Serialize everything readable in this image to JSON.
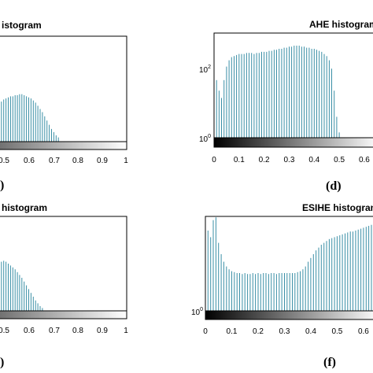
{
  "chart_data": [
    {
      "panel": "top-left",
      "type": "bar",
      "title": "istogram",
      "xticks": [
        "0.5",
        "0.6",
        "0.7",
        "0.8",
        "0.9",
        "1"
      ],
      "xlim": [
        0.43,
        1.0
      ],
      "panel_label": ")",
      "series": [
        {
          "x": [
            0.44,
            0.45,
            0.46,
            0.47,
            0.48,
            0.49,
            0.5,
            0.51,
            0.52,
            0.53,
            0.54,
            0.55,
            0.56,
            0.57,
            0.58,
            0.59,
            0.6,
            0.61,
            0.62,
            0.63,
            0.64,
            0.65,
            0.66,
            0.67,
            0.68,
            0.69,
            0.7
          ],
          "rel": [
            0.34,
            0.38,
            0.4,
            0.41,
            0.42,
            0.43,
            0.43,
            0.44,
            0.44,
            0.45,
            0.45,
            0.44,
            0.43,
            0.42,
            0.41,
            0.39,
            0.37,
            0.34,
            0.31,
            0.28,
            0.24,
            0.2,
            0.16,
            0.12,
            0.09,
            0.06,
            0.04
          ]
        }
      ]
    },
    {
      "panel": "top-right",
      "type": "bar",
      "title": "AHE histogram",
      "yscale": "log",
      "yticks": [
        "10",
        "10",
        "10"
      ],
      "yticks_exp": [
        "2",
        "0",
        ""
      ],
      "xticks": [
        "0",
        "0.1",
        "0.2",
        "0.3",
        "0.4",
        "0.5",
        "0.6"
      ],
      "xlim": [
        0,
        0.66
      ],
      "panel_label": "(d)",
      "series": [
        {
          "x": [
            0.0,
            0.01,
            0.02,
            0.03,
            0.04,
            0.05,
            0.06,
            0.07,
            0.08,
            0.09,
            0.1,
            0.11,
            0.12,
            0.13,
            0.14,
            0.15,
            0.16,
            0.17,
            0.18,
            0.19,
            0.2,
            0.21,
            0.22,
            0.23,
            0.24,
            0.25,
            0.26,
            0.27,
            0.28,
            0.29,
            0.3,
            0.31,
            0.32,
            0.33,
            0.34,
            0.35,
            0.36,
            0.37,
            0.38,
            0.39,
            0.4,
            0.41,
            0.42,
            0.43,
            0.44,
            0.45,
            0.46,
            0.47,
            0.48,
            0.49,
            0.5
          ],
          "rel": [
            0.62,
            0.55,
            0.45,
            0.38,
            0.55,
            0.68,
            0.74,
            0.77,
            0.78,
            0.79,
            0.8,
            0.8,
            0.8,
            0.81,
            0.81,
            0.81,
            0.8,
            0.81,
            0.81,
            0.82,
            0.82,
            0.82,
            0.83,
            0.83,
            0.84,
            0.84,
            0.85,
            0.85,
            0.86,
            0.86,
            0.87,
            0.87,
            0.88,
            0.88,
            0.88,
            0.87,
            0.87,
            0.86,
            0.86,
            0.85,
            0.85,
            0.84,
            0.83,
            0.82,
            0.8,
            0.78,
            0.74,
            0.66,
            0.45,
            0.2,
            0.05
          ]
        }
      ]
    },
    {
      "panel": "bottom-left",
      "type": "bar",
      "title": "histogram",
      "xticks": [
        "0.5",
        "0.6",
        "0.7",
        "0.8",
        "0.9",
        "1"
      ],
      "xlim": [
        0.43,
        1.0
      ],
      "panel_label": ")",
      "series": [
        {
          "x": [
            0.44,
            0.45,
            0.46,
            0.47,
            0.48,
            0.49,
            0.5,
            0.51,
            0.52,
            0.53,
            0.54,
            0.55,
            0.56,
            0.57,
            0.58,
            0.59,
            0.6,
            0.61,
            0.62,
            0.63
          ],
          "rel": [
            0.5,
            0.52,
            0.53,
            0.52,
            0.5,
            0.48,
            0.46,
            0.44,
            0.41,
            0.38,
            0.35,
            0.31,
            0.27,
            0.23,
            0.19,
            0.15,
            0.11,
            0.08,
            0.05,
            0.03
          ]
        }
      ]
    },
    {
      "panel": "bottom-right",
      "type": "bar",
      "title": "ESIHE histogram",
      "yscale": "log",
      "yticks": [
        "10"
      ],
      "yticks_exp": [
        "0"
      ],
      "xticks": [
        "0",
        "0.1",
        "0.2",
        "0.3",
        "0.4",
        "0.5",
        "0.6"
      ],
      "xlim": [
        0,
        0.66
      ],
      "panel_label": "(f)",
      "series": [
        {
          "x": [
            0.0,
            0.01,
            0.02,
            0.03,
            0.04,
            0.05,
            0.06,
            0.07,
            0.08,
            0.09,
            0.1,
            0.11,
            0.12,
            0.13,
            0.14,
            0.15,
            0.16,
            0.17,
            0.18,
            0.19,
            0.2,
            0.21,
            0.22,
            0.23,
            0.24,
            0.25,
            0.26,
            0.27,
            0.28,
            0.29,
            0.3,
            0.31,
            0.32,
            0.33,
            0.34,
            0.35,
            0.36,
            0.37,
            0.38,
            0.39,
            0.4,
            0.41,
            0.42,
            0.43,
            0.44,
            0.45,
            0.46,
            0.47,
            0.48,
            0.49,
            0.5,
            0.51,
            0.52,
            0.53,
            0.54,
            0.55,
            0.56,
            0.57,
            0.58,
            0.59,
            0.6,
            0.61,
            0.62,
            0.63,
            0.64,
            0.65
          ],
          "rel": [
            0.55,
            0.85,
            0.78,
            0.96,
            0.99,
            0.72,
            0.6,
            0.52,
            0.47,
            0.44,
            0.42,
            0.41,
            0.4,
            0.4,
            0.39,
            0.4,
            0.39,
            0.39,
            0.4,
            0.39,
            0.4,
            0.39,
            0.4,
            0.4,
            0.39,
            0.4,
            0.4,
            0.39,
            0.4,
            0.4,
            0.4,
            0.4,
            0.4,
            0.4,
            0.4,
            0.41,
            0.42,
            0.44,
            0.47,
            0.52,
            0.56,
            0.6,
            0.64,
            0.67,
            0.7,
            0.72,
            0.74,
            0.76,
            0.77,
            0.78,
            0.79,
            0.8,
            0.81,
            0.82,
            0.83,
            0.84,
            0.84,
            0.85,
            0.86,
            0.87,
            0.88,
            0.89,
            0.9,
            0.91,
            0.92,
            0.93
          ]
        }
      ]
    }
  ]
}
